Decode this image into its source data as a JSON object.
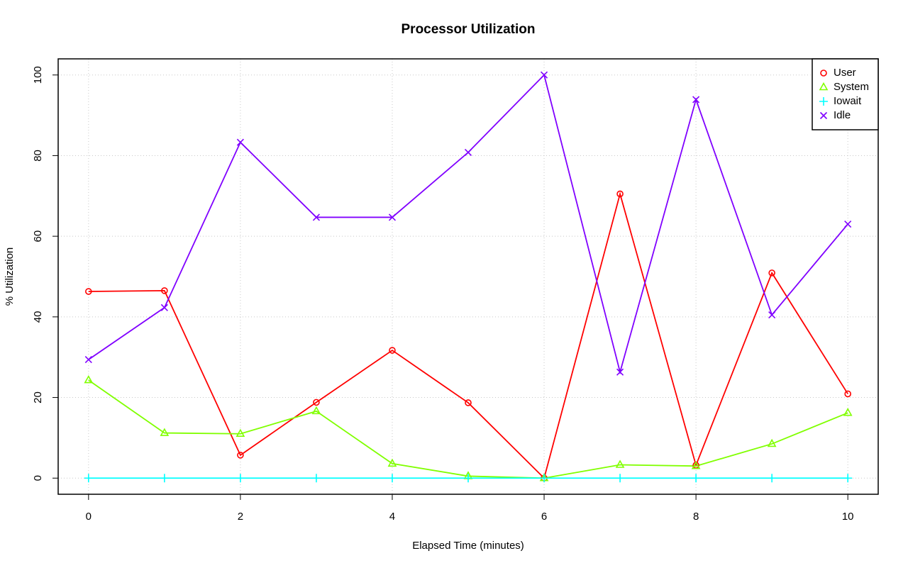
{
  "chart_data": {
    "type": "line",
    "title": "Processor Utilization",
    "x_label": "Elapsed Time (minutes)",
    "y_label": "% Utilization",
    "x": [
      0,
      1,
      2,
      3,
      4,
      5,
      6,
      7,
      8,
      9,
      10
    ],
    "series": [
      {
        "name": "User",
        "color": "#ff0000",
        "marker": "circle",
        "values": [
          46.3,
          46.5,
          5.7,
          18.8,
          31.7,
          18.7,
          0,
          70.5,
          3.2,
          50.9,
          20.9
        ]
      },
      {
        "name": "System",
        "color": "#80ff00",
        "marker": "triangle",
        "values": [
          24.3,
          11.2,
          11.0,
          16.6,
          3.6,
          0.5,
          0,
          3.3,
          3.0,
          8.5,
          16.2
        ]
      },
      {
        "name": "Iowait",
        "color": "#00ffff",
        "marker": "plus",
        "values": [
          0,
          0,
          0,
          0,
          0,
          0,
          0,
          0,
          0,
          0,
          0
        ]
      },
      {
        "name": "Idle",
        "color": "#8000ff",
        "marker": "cross",
        "values": [
          29.4,
          42.3,
          83.3,
          64.7,
          64.7,
          80.8,
          100,
          26.3,
          93.9,
          40.5,
          63.0
        ]
      }
    ],
    "xlim": [
      -0.4,
      10.4
    ],
    "xticks": [
      0,
      2,
      4,
      6,
      8,
      10
    ],
    "ylim": [
      -4,
      104
    ],
    "yticks": [
      0,
      20,
      40,
      60,
      80,
      100
    ],
    "grid": true,
    "legend": "top-right"
  }
}
